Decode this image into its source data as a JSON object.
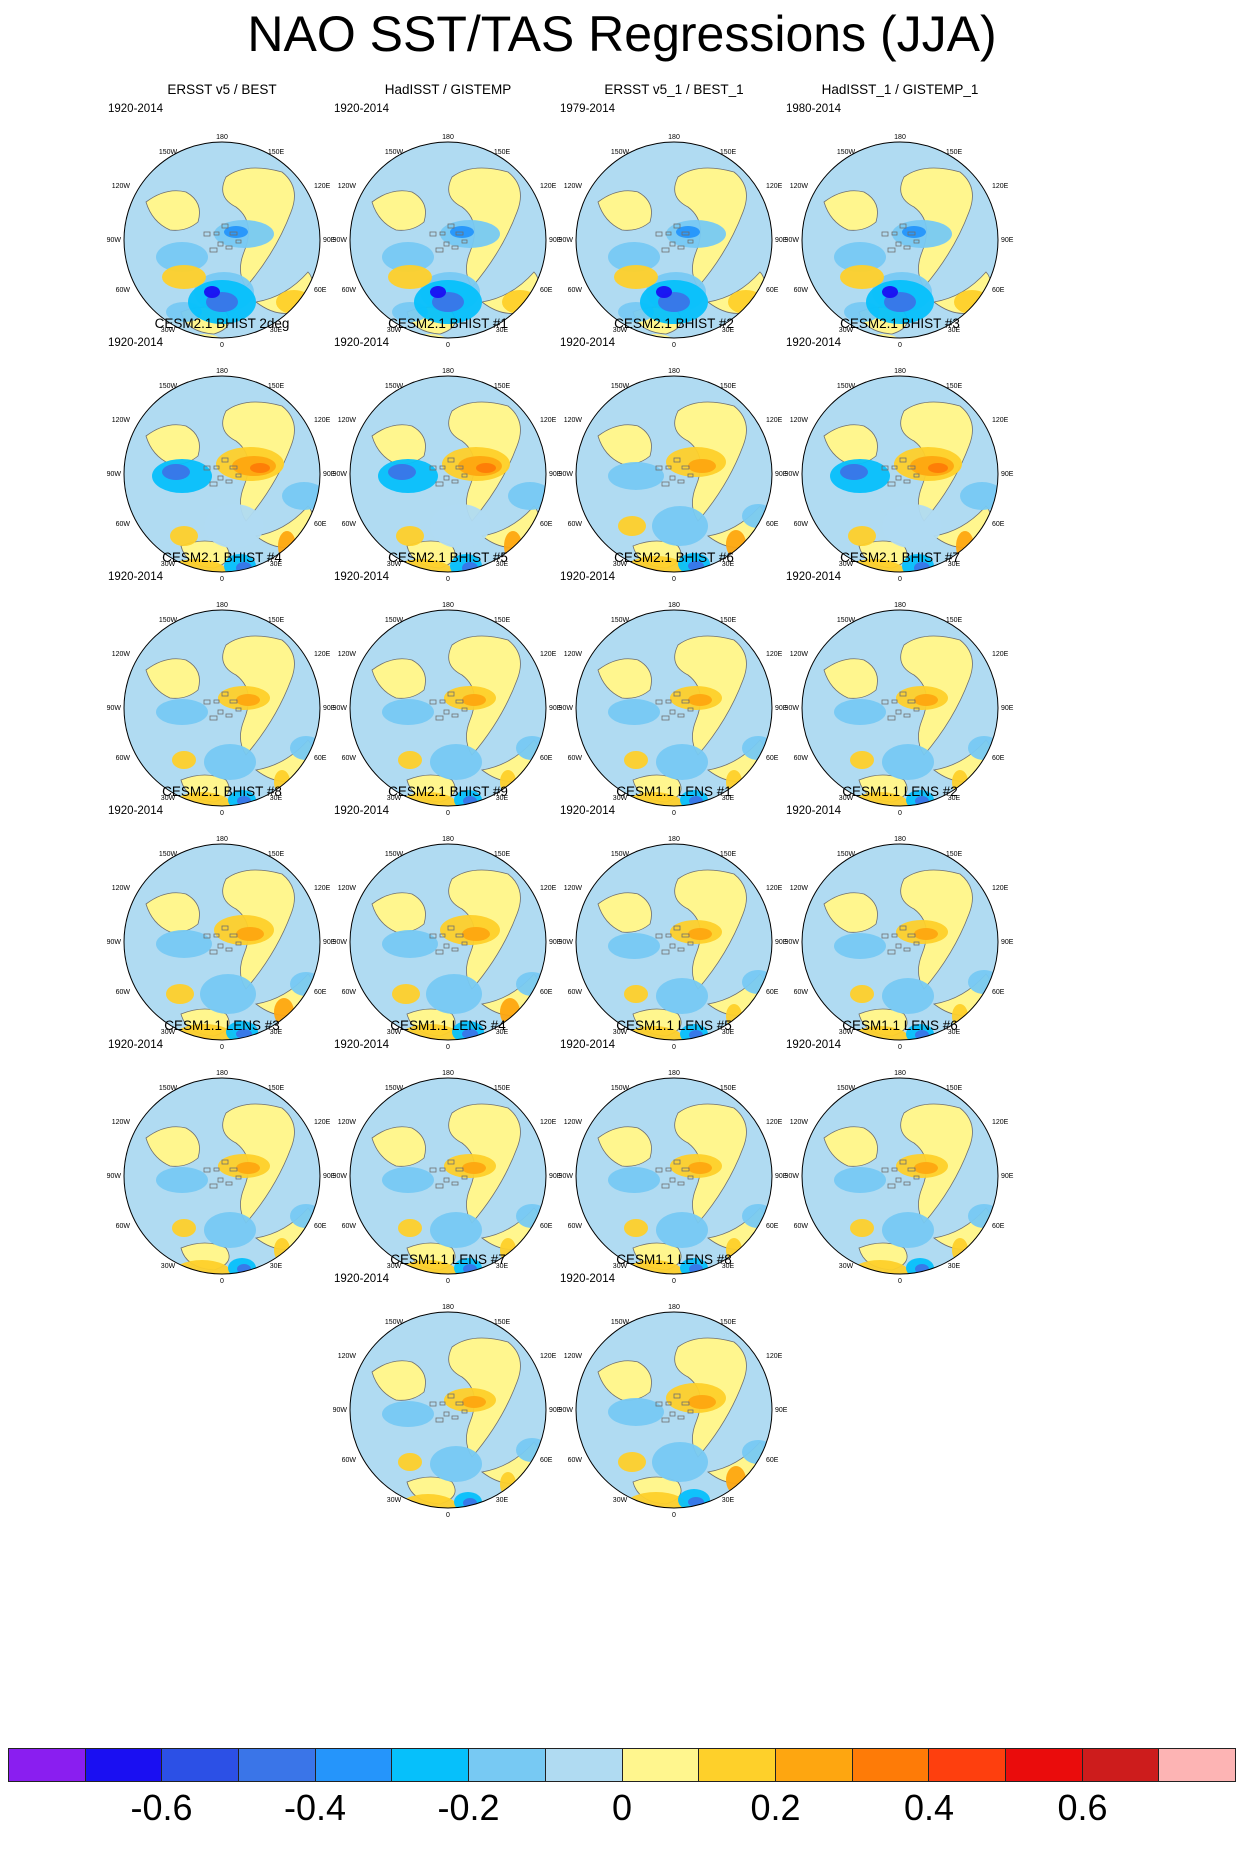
{
  "title": "NAO SST/TAS Regressions (JJA)",
  "projection_labels": {
    "top": "180",
    "top_left": "150W",
    "top_right": "150E",
    "upper_left": "120W",
    "upper_right": "120E",
    "mid_left": "90W",
    "mid_right": "90E",
    "lower_left": "60W",
    "lower_right": "60E",
    "bottom_left": "30W",
    "bottom_right": "30E",
    "bottom": "0"
  },
  "colors": {
    "ocean_base": "#b0dbf2",
    "land_base": "#fff68e",
    "coast": "#6f6f6f"
  },
  "panels": [
    {
      "title": "ERSST v5 / BEST",
      "period": "1920-2014",
      "scheme": "obs"
    },
    {
      "title": "HadISST / GISTEMP",
      "period": "1920-2014",
      "scheme": "obs"
    },
    {
      "title": "ERSST v5_1 / BEST_1",
      "period": "1979-2014",
      "scheme": "obs"
    },
    {
      "title": "HadISST_1 / GISTEMP_1",
      "period": "1980-2014",
      "scheme": "obs"
    },
    {
      "title": "CESM2.1 BHIST 2deg",
      "period": "1920-2014",
      "scheme": "strong"
    },
    {
      "title": "CESM2.1 BHIST #1",
      "period": "1920-2014",
      "scheme": "strong"
    },
    {
      "title": "CESM2.1 BHIST #2",
      "period": "1920-2014",
      "scheme": "mid"
    },
    {
      "title": "CESM2.1 BHIST #3",
      "period": "1920-2014",
      "scheme": "strong"
    },
    {
      "title": "CESM2.1 BHIST #4",
      "period": "1920-2014",
      "scheme": "weak"
    },
    {
      "title": "CESM2.1 BHIST #5",
      "period": "1920-2014",
      "scheme": "weak"
    },
    {
      "title": "CESM2.1 BHIST #6",
      "period": "1920-2014",
      "scheme": "weak"
    },
    {
      "title": "CESM2.1 BHIST #7",
      "period": "1920-2014",
      "scheme": "weak"
    },
    {
      "title": "CESM2.1 BHIST #8",
      "period": "1920-2014",
      "scheme": "mid"
    },
    {
      "title": "CESM2.1 BHIST #9",
      "period": "1920-2014",
      "scheme": "mid"
    },
    {
      "title": "CESM1.1 LENS #1",
      "period": "1920-2014",
      "scheme": "weak"
    },
    {
      "title": "CESM1.1 LENS #2",
      "period": "1920-2014",
      "scheme": "weak"
    },
    {
      "title": "CESM1.1 LENS #3",
      "period": "1920-2014",
      "scheme": "weak"
    },
    {
      "title": "CESM1.1 LENS #4",
      "period": "1920-2014",
      "scheme": "weak"
    },
    {
      "title": "CESM1.1 LENS #5",
      "period": "1920-2014",
      "scheme": "weak"
    },
    {
      "title": "CESM1.1 LENS #6",
      "period": "1920-2014",
      "scheme": "weak"
    },
    {
      "title": "CESM1.1 LENS #7",
      "period": "1920-2014",
      "scheme": "weak"
    },
    {
      "title": "CESM1.1 LENS #8",
      "period": "1920-2014",
      "scheme": "mid"
    }
  ],
  "colorbar": {
    "colors": [
      "#8a1ef0",
      "#1a0ff2",
      "#2c50e6",
      "#3a75e8",
      "#2595fb",
      "#06c0fb",
      "#77c9f3",
      "#b0dbf2",
      "#fff68e",
      "#fed02a",
      "#fea610",
      "#fe7b07",
      "#fe3f0e",
      "#ea0c0c",
      "#cd1c1c",
      "#fdb4b4"
    ],
    "labels": [
      "-0.6",
      "-0.4",
      "-0.2",
      "0",
      "0.2",
      "0.4",
      "0.6"
    ],
    "label_values": [
      -0.6,
      -0.4,
      -0.2,
      0,
      0.2,
      0.4,
      0.6
    ],
    "min": -0.8,
    "max": 0.8
  }
}
